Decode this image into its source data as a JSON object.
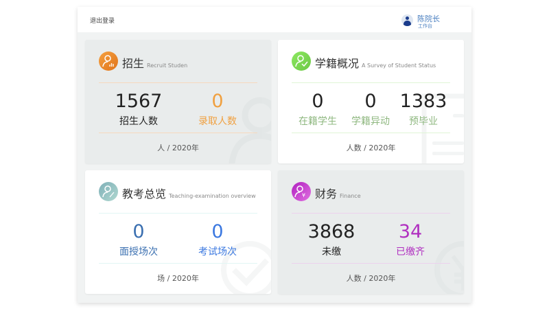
{
  "header": {
    "logout": "退出登录",
    "user_name": "陈院长",
    "user_sub": "工作台"
  },
  "cards": [
    {
      "title": "招生",
      "subtitle": "Recruit Studen",
      "icon": "user-chart-icon",
      "color": "#f0902a",
      "stats": [
        {
          "value": "1567",
          "label": "招生人数",
          "color": "#222"
        },
        {
          "value": "0",
          "label": "录取人数",
          "color": "#f0a040"
        }
      ],
      "footer": "人 / 2020年"
    },
    {
      "title": "学籍概况",
      "subtitle": "A Survey of Student Status",
      "icon": "user-check-icon",
      "color": "#7fd85a",
      "stats": [
        {
          "value": "0",
          "label": "在籍学生",
          "color": "#222"
        },
        {
          "value": "0",
          "label": "学籍异动",
          "color": "#222"
        },
        {
          "value": "1383",
          "label": "预毕业",
          "color": "#222"
        }
      ],
      "label_color": "#8fb880",
      "footer": "人数 / 2020年"
    },
    {
      "title": "教考总览",
      "subtitle": "Teaching-examination overview",
      "icon": "user-percent-icon",
      "color": "#8fc0c0",
      "stats": [
        {
          "value": "0",
          "label": "面授场次",
          "color": "#3a6fb0"
        },
        {
          "value": "0",
          "label": "考试场次",
          "color": "#3b78e0"
        }
      ],
      "footer": "场 / 2020年"
    },
    {
      "title": "财务",
      "subtitle": "Finance",
      "icon": "user-yen-icon",
      "color": "#c03ac8",
      "stats": [
        {
          "value": "3868",
          "label": "未缴",
          "color": "#222"
        },
        {
          "value": "34",
          "label": "已缴齐",
          "color": "#b02fc0"
        }
      ],
      "footer": "人数 / 2020年"
    }
  ]
}
